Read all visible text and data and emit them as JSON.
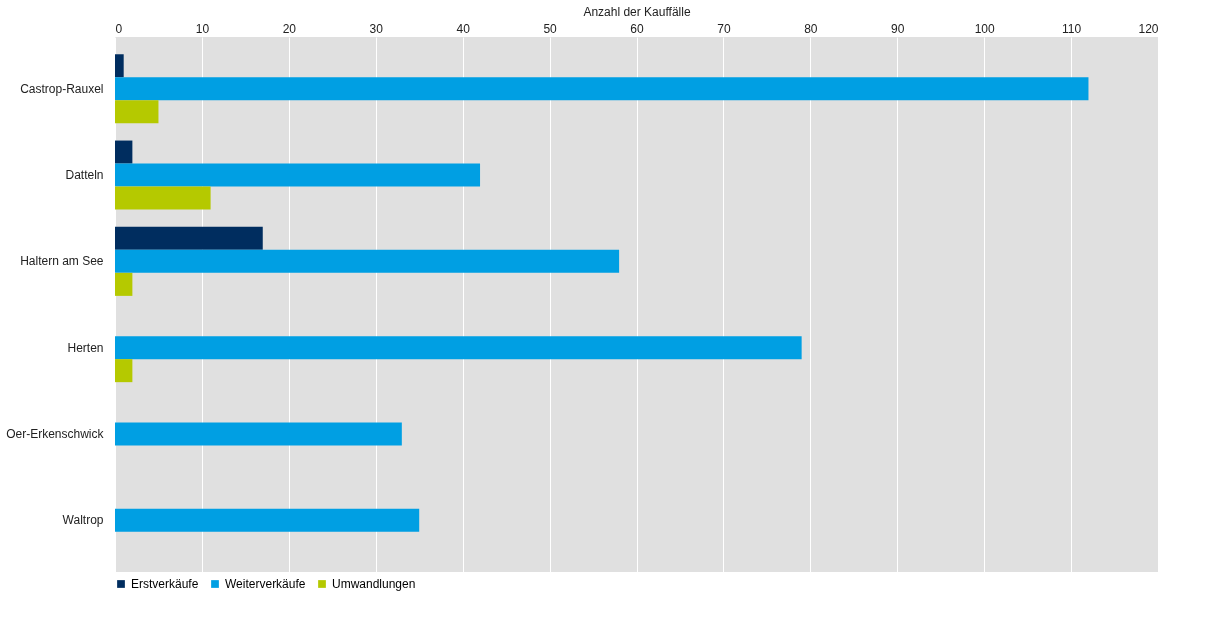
{
  "chart_data": {
    "type": "bar",
    "orientation": "horizontal",
    "xlabel": "Anzahl der Kauffälle",
    "categories": [
      "Castrop-Rauxel",
      "Datteln",
      "Haltern am See",
      "Herten",
      "Oer-Erkenschwick",
      "Waltrop"
    ],
    "series": [
      {
        "name": "Erstverkäufe",
        "color": "#002d5f",
        "values": [
          1,
          2,
          17,
          null,
          null,
          null
        ]
      },
      {
        "name": "Weiterverkäufe",
        "color": "#009fe3",
        "values": [
          112,
          42,
          58,
          79,
          33,
          35
        ]
      },
      {
        "name": "Umwandlungen",
        "color": "#b5c900",
        "values": [
          5,
          11,
          2,
          2,
          null,
          null
        ]
      }
    ],
    "xlim": [
      0,
      120
    ],
    "xticks": [
      0,
      10,
      20,
      30,
      40,
      50,
      60,
      70,
      80,
      90,
      100,
      110,
      120
    ],
    "grid": "x",
    "legend": "bottom"
  }
}
